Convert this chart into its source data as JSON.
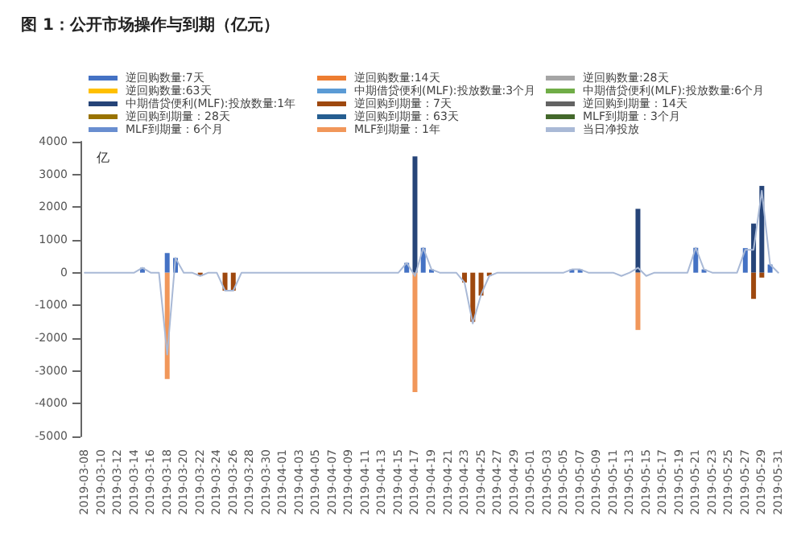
{
  "chart_data": {
    "type": "bar",
    "title": "图 1：公开市场操作与到期（亿元）",
    "ylabel": "亿",
    "categories": [
      "2019-03-08",
      null,
      "2019-03-10",
      null,
      "2019-03-12",
      null,
      "2019-03-14",
      null,
      "2019-03-16",
      null,
      "2019-03-18",
      null,
      "2019-03-20",
      null,
      "2019-03-22",
      null,
      "2019-03-24",
      null,
      "2019-03-26",
      null,
      "2019-03-28",
      null,
      "2019-03-30",
      null,
      "2019-04-01",
      null,
      "2019-04-03",
      null,
      "2019-04-05",
      null,
      "2019-04-07",
      null,
      "2019-04-09",
      null,
      "2019-04-11",
      null,
      "2019-04-13",
      null,
      "2019-04-15",
      null,
      "2019-04-17",
      null,
      "2019-04-19",
      null,
      "2019-04-21",
      null,
      "2019-04-23",
      null,
      "2019-04-25",
      null,
      "2019-04-27",
      null,
      "2019-04-29",
      null,
      "2019-05-01",
      null,
      "2019-05-03",
      null,
      "2019-05-05",
      null,
      "2019-05-07",
      null,
      "2019-05-09",
      null,
      "2019-05-11",
      null,
      "2019-05-13",
      null,
      "2019-05-15",
      null,
      "2019-05-17",
      null,
      "2019-05-19",
      null,
      "2019-05-21",
      null,
      "2019-05-23",
      null,
      "2019-05-25",
      null,
      "2019-05-27",
      null,
      "2019-05-29",
      null,
      "2019-05-31"
    ],
    "legend": "top",
    "grid": false,
    "marker": "none",
    "line_style": "solid",
    "ylim": [
      -5000,
      4000
    ],
    "yticks": [
      -5000,
      -4000,
      -3000,
      -2000,
      -1000,
      0,
      1000,
      2000,
      3000,
      4000
    ],
    "series": [
      {
        "name": "逆回购数量:7天",
        "color": "#4472c4",
        "values": [
          null,
          null,
          null,
          null,
          null,
          null,
          null,
          150,
          null,
          null,
          600,
          450,
          null,
          null,
          null,
          null,
          null,
          null,
          null,
          null,
          null,
          null,
          null,
          null,
          null,
          null,
          null,
          null,
          null,
          null,
          null,
          null,
          null,
          null,
          null,
          null,
          null,
          null,
          null,
          300,
          null,
          760,
          100,
          null,
          null,
          null,
          null,
          null,
          null,
          null,
          null,
          null,
          null,
          null,
          null,
          null,
          null,
          null,
          null,
          100,
          100,
          null,
          null,
          null,
          null,
          null,
          null,
          null,
          null,
          null,
          null,
          null,
          null,
          null,
          760,
          100,
          null,
          null,
          null,
          null,
          750,
          null,
          null,
          250,
          null
        ]
      },
      {
        "name": "逆回购数量:14天",
        "color": "#ed7d31",
        "values": [
          null,
          null,
          null,
          null,
          null,
          null,
          null,
          null,
          null,
          null,
          null,
          null,
          null,
          null,
          null,
          null,
          null,
          null,
          null,
          null,
          null,
          null,
          null,
          null,
          null,
          null,
          null,
          null,
          null,
          null,
          null,
          null,
          null,
          null,
          null,
          null,
          null,
          null,
          null,
          null,
          null,
          null,
          null,
          null,
          null,
          null,
          null,
          null,
          null,
          null,
          null,
          null,
          null,
          null,
          null,
          null,
          null,
          null,
          null,
          null,
          null,
          null,
          null,
          null,
          null,
          null,
          null,
          null,
          null,
          null,
          null,
          null,
          null,
          null,
          null,
          null,
          null,
          null,
          null,
          null,
          null,
          null,
          null,
          null,
          null
        ]
      },
      {
        "name": "逆回购数量:28天",
        "color": "#a5a5a5",
        "values": [
          null,
          null,
          null,
          null,
          null,
          null,
          null,
          null,
          null,
          null,
          null,
          null,
          null,
          null,
          null,
          null,
          null,
          null,
          null,
          null,
          null,
          null,
          null,
          null,
          null,
          null,
          null,
          null,
          null,
          null,
          null,
          null,
          null,
          null,
          null,
          null,
          null,
          null,
          null,
          null,
          null,
          null,
          null,
          null,
          null,
          null,
          null,
          null,
          null,
          null,
          null,
          null,
          null,
          null,
          null,
          null,
          null,
          null,
          null,
          null,
          null,
          null,
          null,
          null,
          null,
          null,
          null,
          null,
          null,
          null,
          null,
          null,
          null,
          null,
          null,
          null,
          null,
          null,
          null,
          null,
          null,
          null,
          null,
          null,
          null
        ]
      },
      {
        "name": "逆回购数量:63天",
        "color": "#ffc000",
        "values": [
          null,
          null,
          null,
          null,
          null,
          null,
          null,
          null,
          null,
          null,
          null,
          null,
          null,
          null,
          null,
          null,
          null,
          null,
          null,
          null,
          null,
          null,
          null,
          null,
          null,
          null,
          null,
          null,
          null,
          null,
          null,
          null,
          null,
          null,
          null,
          null,
          null,
          null,
          null,
          null,
          null,
          null,
          null,
          null,
          null,
          null,
          null,
          null,
          null,
          null,
          null,
          null,
          null,
          null,
          null,
          null,
          null,
          null,
          null,
          null,
          null,
          null,
          null,
          null,
          null,
          null,
          null,
          null,
          null,
          null,
          null,
          null,
          null,
          null,
          null,
          null,
          null,
          null,
          null,
          null,
          null,
          null,
          null,
          null,
          null
        ]
      },
      {
        "name": "中期借贷便利(MLF):投放数量:3个月",
        "color": "#5b9bd5",
        "values": [
          null,
          null,
          null,
          null,
          null,
          null,
          null,
          null,
          null,
          null,
          null,
          null,
          null,
          null,
          null,
          null,
          null,
          null,
          null,
          null,
          null,
          null,
          null,
          null,
          null,
          null,
          null,
          null,
          null,
          null,
          null,
          null,
          null,
          null,
          null,
          null,
          null,
          null,
          null,
          null,
          null,
          null,
          null,
          null,
          null,
          null,
          null,
          null,
          null,
          null,
          null,
          null,
          null,
          null,
          null,
          null,
          null,
          null,
          null,
          null,
          null,
          null,
          null,
          null,
          null,
          null,
          null,
          null,
          null,
          null,
          null,
          null,
          null,
          null,
          null,
          null,
          null,
          null,
          null,
          null,
          null,
          null,
          null,
          null,
          null
        ]
      },
      {
        "name": "中期借贷便利(MLF):投放数量:6个月",
        "color": "#70ad47",
        "values": [
          null,
          null,
          null,
          null,
          null,
          null,
          null,
          null,
          null,
          null,
          null,
          null,
          null,
          null,
          null,
          null,
          null,
          null,
          null,
          null,
          null,
          null,
          null,
          null,
          null,
          null,
          null,
          null,
          null,
          null,
          null,
          null,
          null,
          null,
          null,
          null,
          null,
          null,
          null,
          null,
          null,
          null,
          null,
          null,
          null,
          null,
          null,
          null,
          null,
          null,
          null,
          null,
          null,
          null,
          null,
          null,
          null,
          null,
          null,
          null,
          null,
          null,
          null,
          null,
          null,
          null,
          null,
          null,
          null,
          null,
          null,
          null,
          null,
          null,
          null,
          null,
          null,
          null,
          null,
          null,
          null,
          null,
          null,
          null,
          null
        ]
      },
      {
        "name": "中期借贷便利(MLF):投放数量:1年",
        "color": "#264478",
        "values": [
          null,
          null,
          null,
          null,
          null,
          null,
          null,
          null,
          null,
          null,
          null,
          null,
          null,
          null,
          null,
          null,
          null,
          null,
          null,
          null,
          null,
          null,
          null,
          null,
          null,
          null,
          null,
          null,
          null,
          null,
          null,
          null,
          null,
          null,
          null,
          null,
          null,
          null,
          null,
          null,
          3550,
          null,
          null,
          null,
          null,
          null,
          null,
          null,
          null,
          null,
          null,
          null,
          null,
          null,
          null,
          null,
          null,
          null,
          null,
          null,
          null,
          null,
          null,
          null,
          null,
          null,
          null,
          1950,
          null,
          null,
          null,
          null,
          null,
          null,
          null,
          null,
          null,
          null,
          null,
          null,
          null,
          1500,
          2650,
          null,
          null
        ]
      },
      {
        "name": "逆回购到期量：7天",
        "color": "#9e480e",
        "values": [
          null,
          null,
          null,
          null,
          null,
          null,
          null,
          null,
          null,
          null,
          null,
          null,
          null,
          null,
          -100,
          null,
          null,
          -550,
          -550,
          null,
          null,
          null,
          null,
          null,
          null,
          null,
          null,
          null,
          null,
          null,
          null,
          null,
          null,
          null,
          null,
          null,
          null,
          null,
          null,
          null,
          null,
          null,
          null,
          null,
          null,
          null,
          -300,
          -1500,
          -700,
          -100,
          null,
          null,
          null,
          null,
          null,
          null,
          null,
          null,
          null,
          null,
          null,
          null,
          null,
          null,
          null,
          null,
          null,
          null,
          null,
          null,
          null,
          null,
          null,
          null,
          null,
          null,
          null,
          null,
          null,
          null,
          null,
          -800,
          -150,
          null,
          null
        ]
      },
      {
        "name": "逆回购到期量：14天",
        "color": "#636363",
        "values": [
          null,
          null,
          null,
          null,
          null,
          null,
          null,
          null,
          null,
          null,
          null,
          null,
          null,
          null,
          null,
          null,
          null,
          null,
          null,
          null,
          null,
          null,
          null,
          null,
          null,
          null,
          null,
          null,
          null,
          null,
          null,
          null,
          null,
          null,
          null,
          null,
          null,
          null,
          null,
          null,
          null,
          null,
          null,
          null,
          null,
          null,
          null,
          null,
          null,
          null,
          null,
          null,
          null,
          null,
          null,
          null,
          null,
          null,
          null,
          null,
          null,
          null,
          null,
          null,
          null,
          null,
          null,
          null,
          null,
          null,
          null,
          null,
          null,
          null,
          null,
          null,
          null,
          null,
          null,
          null,
          null,
          null,
          null,
          null,
          null
        ]
      },
      {
        "name": "逆回购到期量：28天",
        "color": "#997300",
        "values": [
          null,
          null,
          null,
          null,
          null,
          null,
          null,
          null,
          null,
          null,
          null,
          null,
          null,
          null,
          null,
          null,
          null,
          null,
          null,
          null,
          null,
          null,
          null,
          null,
          null,
          null,
          null,
          null,
          null,
          null,
          null,
          null,
          null,
          null,
          null,
          null,
          null,
          null,
          null,
          null,
          null,
          null,
          null,
          null,
          null,
          null,
          null,
          null,
          null,
          null,
          null,
          null,
          null,
          null,
          null,
          null,
          null,
          null,
          null,
          null,
          null,
          null,
          null,
          null,
          null,
          null,
          null,
          null,
          null,
          null,
          null,
          null,
          null,
          null,
          null,
          null,
          null,
          null,
          null,
          null,
          null,
          null,
          null,
          null,
          null
        ]
      },
      {
        "name": "逆回购到期量：63天",
        "color": "#255e91",
        "values": [
          null,
          null,
          null,
          null,
          null,
          null,
          null,
          null,
          null,
          null,
          null,
          null,
          null,
          null,
          null,
          null,
          null,
          null,
          null,
          null,
          null,
          null,
          null,
          null,
          null,
          null,
          null,
          null,
          null,
          null,
          null,
          null,
          null,
          null,
          null,
          null,
          null,
          null,
          null,
          null,
          null,
          null,
          null,
          null,
          null,
          null,
          null,
          null,
          null,
          null,
          null,
          null,
          null,
          null,
          null,
          null,
          null,
          null,
          null,
          null,
          null,
          null,
          null,
          null,
          null,
          null,
          null,
          null,
          null,
          null,
          null,
          null,
          null,
          null,
          null,
          null,
          null,
          null,
          null,
          null,
          null,
          null,
          null,
          null,
          null
        ]
      },
      {
        "name": "MLF到期量：3个月",
        "color": "#43682b",
        "values": [
          null,
          null,
          null,
          null,
          null,
          null,
          null,
          null,
          null,
          null,
          null,
          null,
          null,
          null,
          null,
          null,
          null,
          null,
          null,
          null,
          null,
          null,
          null,
          null,
          null,
          null,
          null,
          null,
          null,
          null,
          null,
          null,
          null,
          null,
          null,
          null,
          null,
          null,
          null,
          null,
          null,
          null,
          null,
          null,
          null,
          null,
          null,
          null,
          null,
          null,
          null,
          null,
          null,
          null,
          null,
          null,
          null,
          null,
          null,
          null,
          null,
          null,
          null,
          null,
          null,
          null,
          null,
          null,
          null,
          null,
          null,
          null,
          null,
          null,
          null,
          null,
          null,
          null,
          null,
          null,
          null,
          null,
          null,
          null,
          null
        ]
      },
      {
        "name": "MLF到期量：6个月",
        "color": "#698ed0",
        "values": [
          null,
          null,
          null,
          null,
          null,
          null,
          null,
          null,
          null,
          null,
          null,
          null,
          null,
          null,
          null,
          null,
          null,
          null,
          null,
          null,
          null,
          null,
          null,
          null,
          null,
          null,
          null,
          null,
          null,
          null,
          null,
          null,
          null,
          null,
          null,
          null,
          null,
          null,
          null,
          null,
          null,
          null,
          null,
          null,
          null,
          null,
          null,
          null,
          null,
          null,
          null,
          null,
          null,
          null,
          null,
          null,
          null,
          null,
          null,
          null,
          null,
          null,
          null,
          null,
          null,
          null,
          null,
          null,
          null,
          null,
          null,
          null,
          null,
          null,
          null,
          null,
          null,
          null,
          null,
          null,
          null,
          null,
          null,
          null,
          null
        ]
      },
      {
        "name": "MLF到期量：1年",
        "color": "#f1975a",
        "values": [
          null,
          null,
          null,
          null,
          null,
          null,
          null,
          null,
          null,
          null,
          -3250,
          null,
          null,
          null,
          null,
          null,
          null,
          null,
          null,
          null,
          null,
          null,
          null,
          null,
          null,
          null,
          null,
          null,
          null,
          null,
          null,
          null,
          null,
          null,
          null,
          null,
          null,
          null,
          null,
          null,
          -3650,
          null,
          null,
          null,
          null,
          null,
          null,
          null,
          null,
          null,
          null,
          null,
          null,
          null,
          null,
          null,
          null,
          null,
          null,
          null,
          null,
          null,
          null,
          null,
          null,
          null,
          null,
          -1750,
          null,
          null,
          null,
          null,
          null,
          null,
          null,
          null,
          null,
          null,
          null,
          null,
          null,
          null,
          null,
          null,
          null
        ]
      },
      {
        "name": "当日净投放",
        "type": "line",
        "color": "#a9b9d6",
        "values": [
          0,
          0,
          0,
          0,
          0,
          0,
          0,
          150,
          0,
          0,
          -2500,
          450,
          0,
          0,
          -100,
          0,
          0,
          -550,
          -550,
          0,
          0,
          0,
          0,
          0,
          0,
          0,
          0,
          0,
          0,
          0,
          0,
          0,
          0,
          0,
          0,
          0,
          0,
          0,
          0,
          300,
          -100,
          760,
          100,
          0,
          0,
          0,
          -300,
          -1550,
          -670,
          -100,
          0,
          0,
          0,
          0,
          0,
          0,
          0,
          0,
          0,
          100,
          100,
          0,
          0,
          0,
          0,
          -100,
          0,
          150,
          -100,
          0,
          0,
          0,
          0,
          0,
          760,
          100,
          0,
          0,
          0,
          0,
          700,
          700,
          2500,
          250,
          0
        ]
      }
    ]
  }
}
